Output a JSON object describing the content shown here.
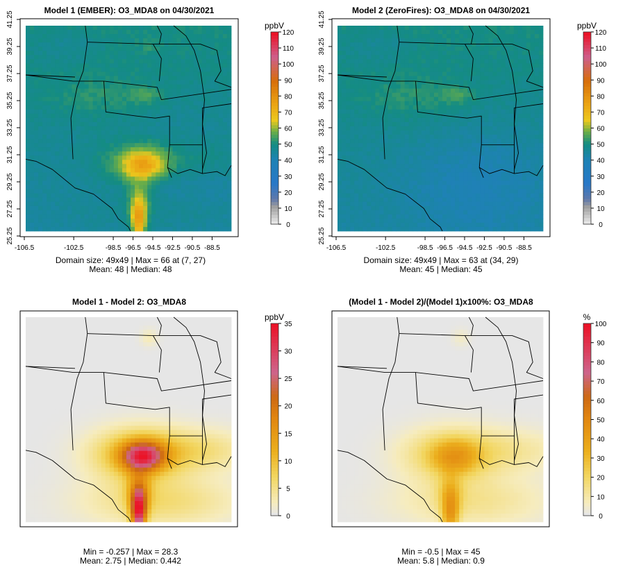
{
  "chart_data": [
    {
      "type": "heatmap",
      "title": "Model 1 (EMBER): O3_MDA8 on 04/30/2021",
      "colorbar": {
        "unit": "ppbV",
        "ticks": [
          0,
          10,
          20,
          30,
          40,
          50,
          60,
          70,
          80,
          90,
          100,
          110,
          120
        ],
        "range": [
          0,
          120
        ],
        "palette": "ozone"
      },
      "x_ticks": [
        "-106.5",
        "-102.5",
        "-98.5",
        "-96.5",
        "-94.5",
        "-92.5",
        "-90.5",
        "-88.5"
      ],
      "y_ticks": [
        "25.25",
        "27.25",
        "29.25",
        "31.25",
        "33.25",
        "35.25",
        "37.25",
        "39.25",
        "41.25"
      ],
      "field": "model1",
      "stats": [
        "Domain size: 49x49 | Max = 66 at (7, 27)",
        "Mean: 48 |  Median: 48"
      ]
    },
    {
      "type": "heatmap",
      "title": "Model 2 (ZeroFires): O3_MDA8 on 04/30/2021",
      "colorbar": {
        "unit": "ppbV",
        "ticks": [
          0,
          10,
          20,
          30,
          40,
          50,
          60,
          70,
          80,
          90,
          100,
          110,
          120
        ],
        "range": [
          0,
          120
        ],
        "palette": "ozone"
      },
      "x_ticks": [
        "-106.5",
        "-102.5",
        "-98.5",
        "-96.5",
        "-94.5",
        "-92.5",
        "-90.5",
        "-88.5"
      ],
      "y_ticks": [
        "25.25",
        "27.25",
        "29.25",
        "31.25",
        "33.25",
        "35.25",
        "37.25",
        "39.25",
        "41.25"
      ],
      "field": "model2",
      "stats": [
        "Domain size: 49x49 | Max = 63 at (34, 29)",
        "Mean: 45 |  Median: 45"
      ]
    },
    {
      "type": "heatmap",
      "title": "Model 1 - Model 2: O3_MDA8",
      "colorbar": {
        "unit": "ppbV",
        "ticks": [
          0,
          5,
          10,
          15,
          20,
          25,
          30,
          35
        ],
        "range": [
          0,
          35
        ],
        "palette": "diff"
      },
      "x_ticks": [],
      "y_ticks": [],
      "field": "diff",
      "stats": [
        "Min = -0.257 | Max = 28.3",
        "Mean: 2.75 |  Median: 0.442"
      ]
    },
    {
      "type": "heatmap",
      "title": "(Model 1 - Model 2)/(Model 1)x100%: O3_MDA8",
      "colorbar": {
        "unit": "%",
        "ticks": [
          0,
          10,
          20,
          30,
          40,
          50,
          60,
          70,
          80,
          90,
          100
        ],
        "range": [
          0,
          100
        ],
        "palette": "diff"
      },
      "x_ticks": [],
      "y_ticks": [],
      "field": "pct",
      "stats": [
        "Min = -0.5 | Max = 45",
        "Mean: 5.8 |  Median: 0.9"
      ]
    }
  ]
}
